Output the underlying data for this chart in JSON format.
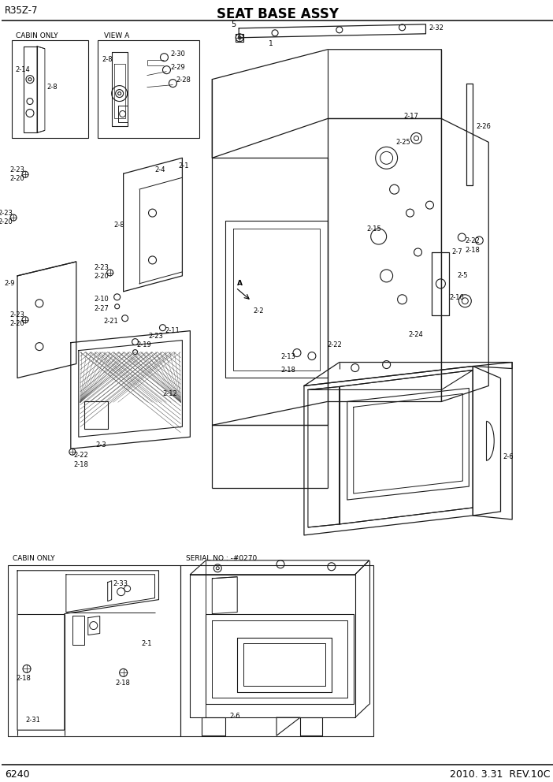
{
  "title": "SEAT BASE ASSY",
  "model": "R35Z-7",
  "page": "6240",
  "date": "2010. 3.31  REV.10C",
  "bg_color": "#ffffff",
  "fig_width": 7.02,
  "fig_height": 9.92,
  "dpi": 100,
  "line_color": "#1a1a1a",
  "text_color": "#000000",
  "lw_main": 0.7,
  "lw_thin": 0.5,
  "lw_thick": 1.0
}
